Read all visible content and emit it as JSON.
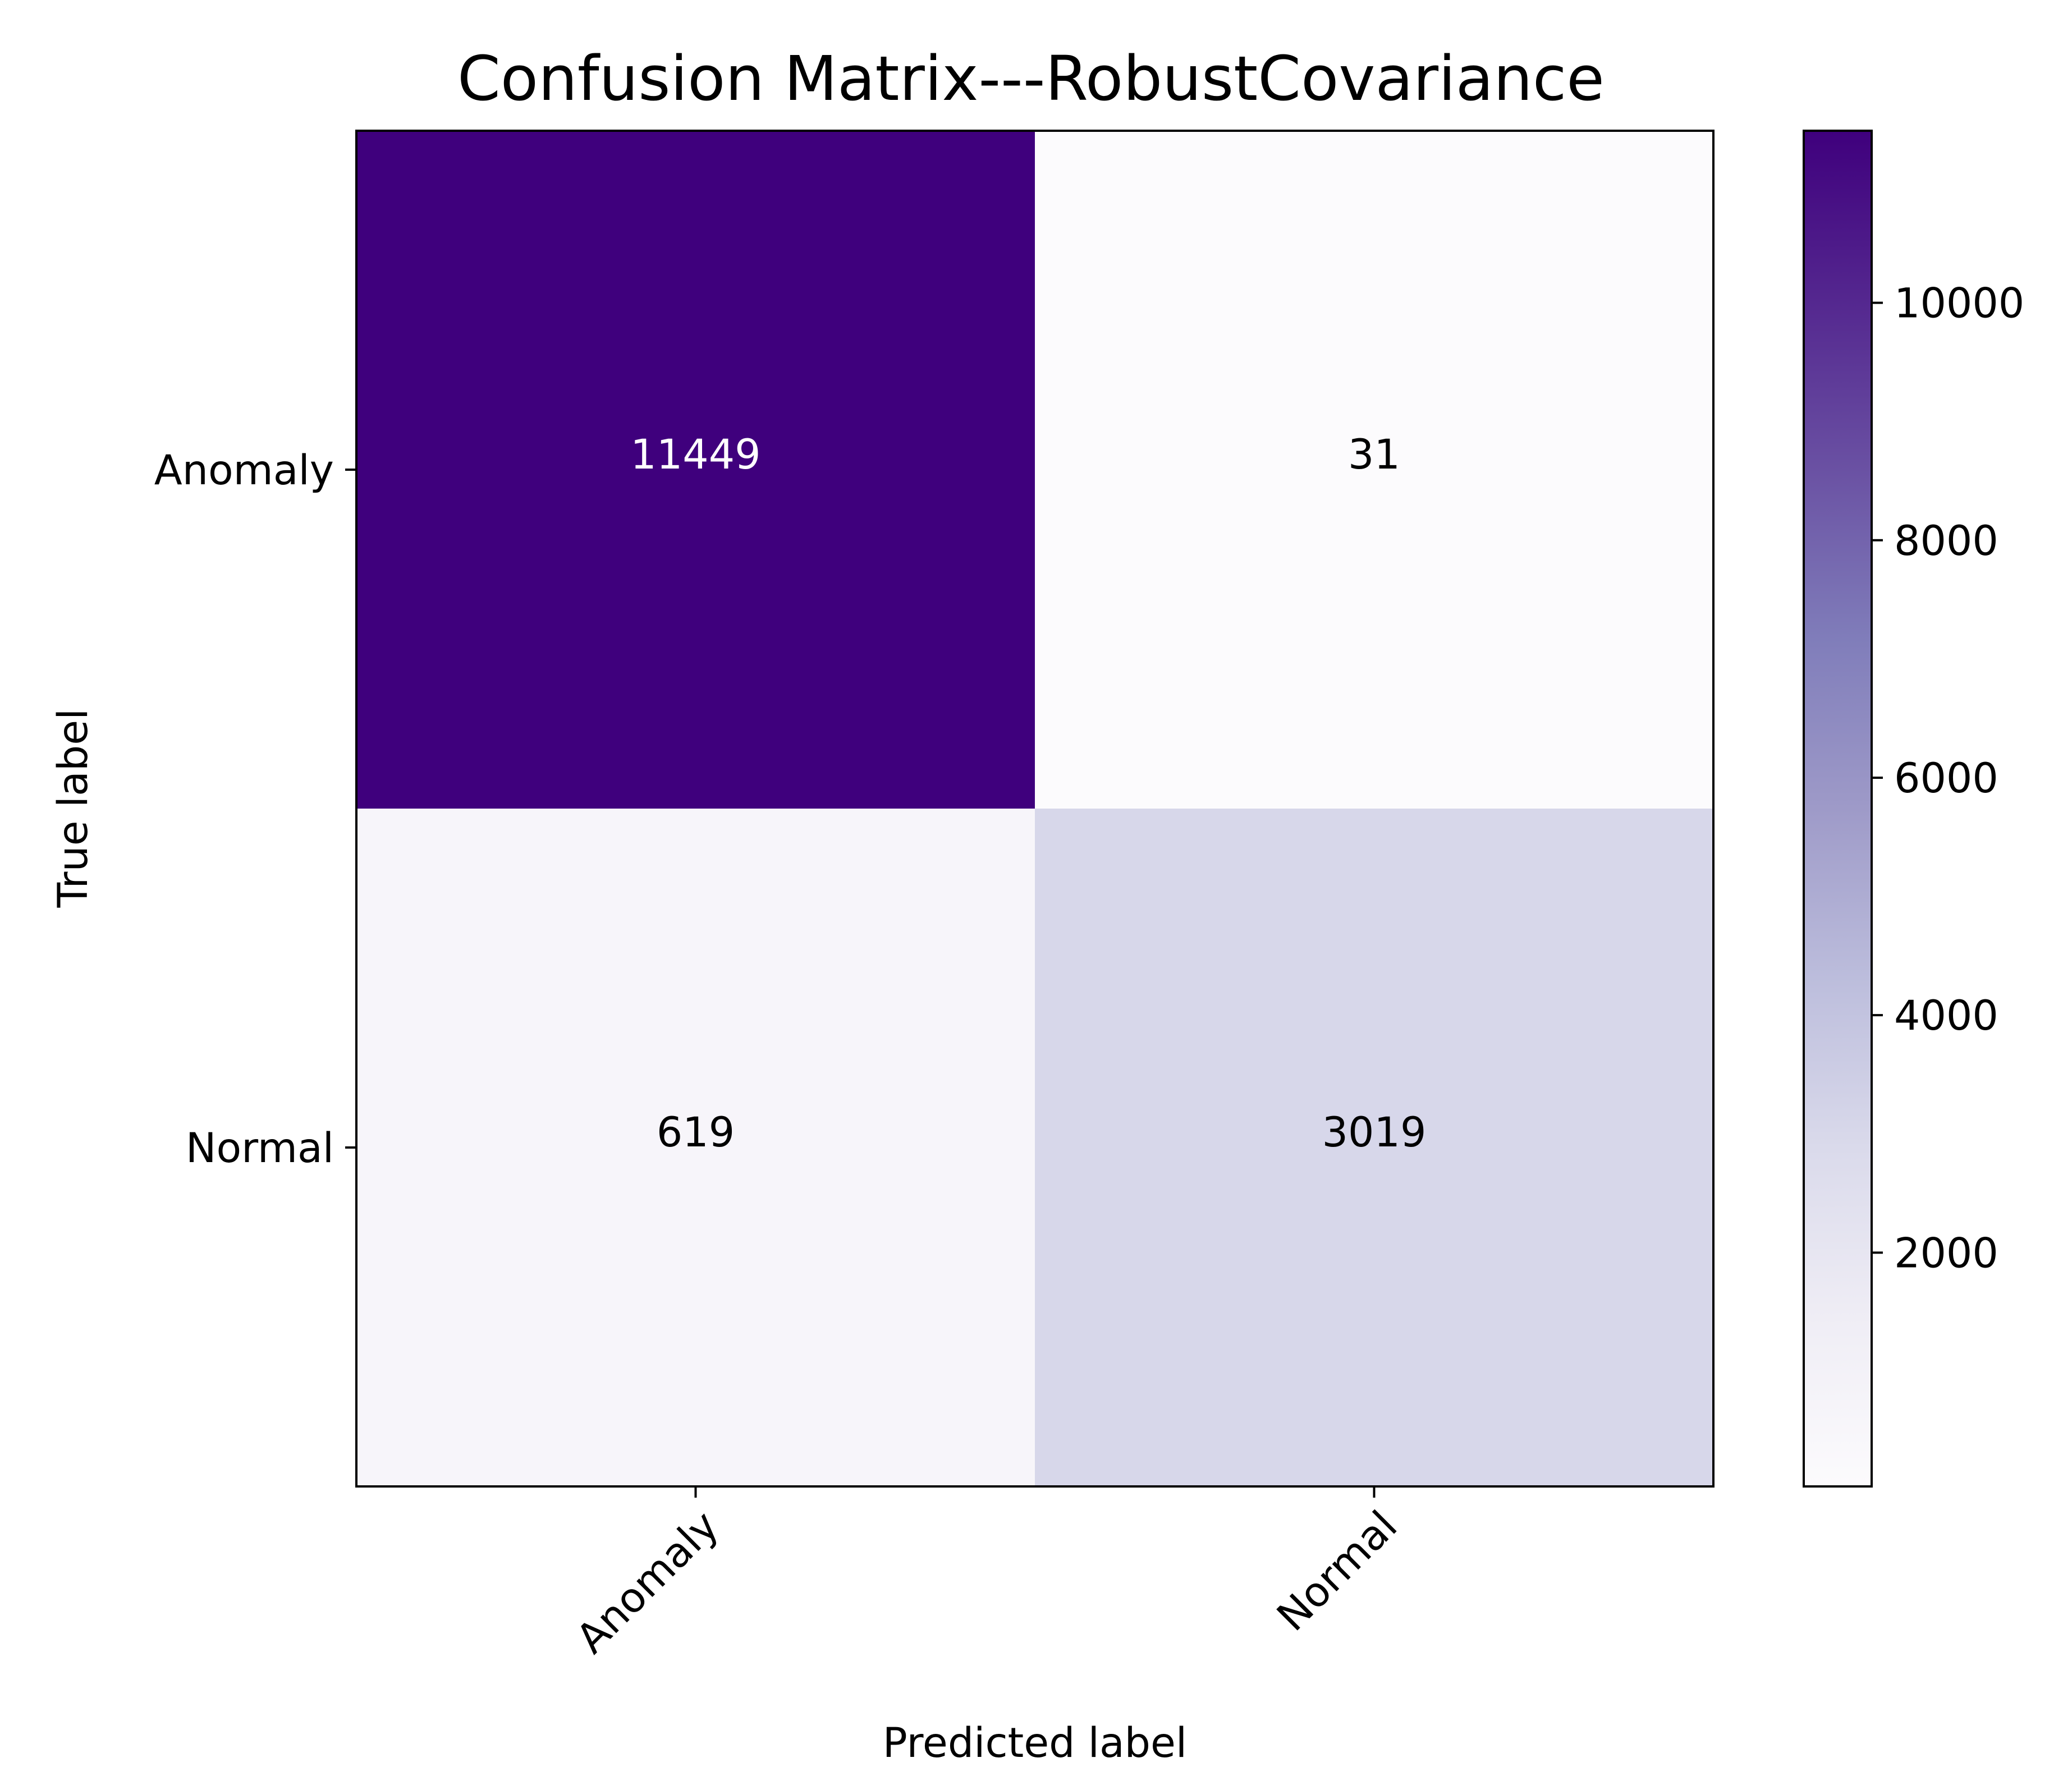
{
  "chart_data": {
    "type": "heatmap",
    "title": "Confusion Matrix---RobustCovariance",
    "xlabel": "Predicted label",
    "ylabel": "True label",
    "row_labels": [
      "Anomaly",
      "Normal"
    ],
    "col_labels": [
      "Anomaly",
      "Normal"
    ],
    "values": [
      [
        11449,
        31
      ],
      [
        619,
        3019
      ]
    ],
    "colorbar": {
      "ticks": [
        2000,
        4000,
        6000,
        8000,
        10000
      ],
      "tick_labels": [
        "2000",
        "4000",
        "6000",
        "8000",
        "10000"
      ],
      "vmin": 31,
      "vmax": 11449,
      "colormap": "Purples",
      "colors": {
        "low": "#fcfbfd",
        "high": "#3f007d"
      }
    },
    "grid": false
  }
}
